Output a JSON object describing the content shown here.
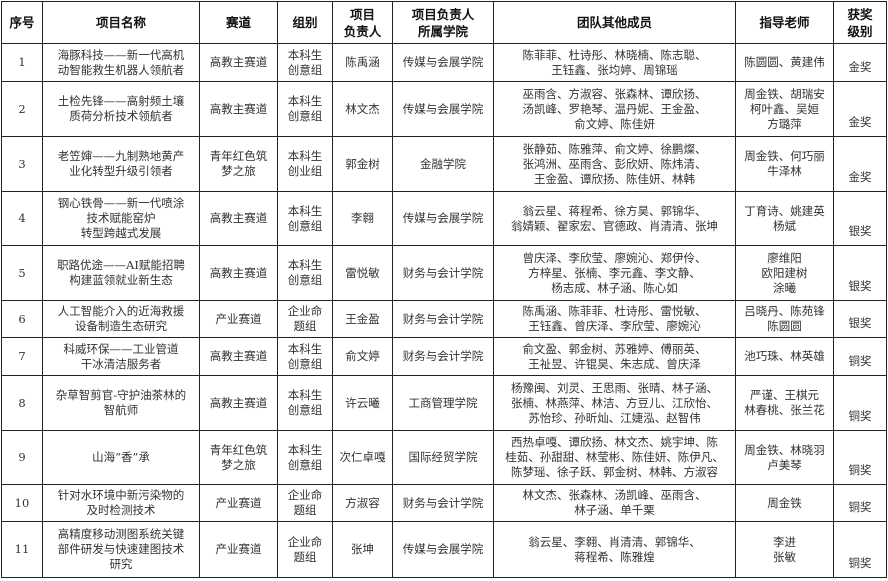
{
  "headers": [
    "序号",
    "项目名称",
    "赛道",
    "组别",
    "项目\n负责人",
    "项目负责人\n所属学院",
    "团队其他成员",
    "指导老师",
    "获奖\n级别"
  ],
  "rows": [
    {
      "no": "1",
      "name": "海豚科技——新一代高机\n动智能救生机器人领航者",
      "track": "高教主赛道",
      "group": "本科生\n创意组",
      "leader": "陈禹涵",
      "college": "传媒与会展学院",
      "members": "陈菲菲、杜诗彤、林晓楠、陈志聪、\n王钰鑫、张均婷、周锦瑶",
      "advisors": "陈圆圆、黄建伟",
      "award": "金奖"
    },
    {
      "no": "2",
      "name": "土检先锋——高射频土壤\n质荷分析技术领航者",
      "track": "高教主赛道",
      "group": "本科生\n创意组",
      "leader": "林文杰",
      "college": "传媒与会展学院",
      "members": "巫雨含、方淑容、张森林、谭欣扬、\n汤凯峰、罗艳琴、温丹妮、王金盈、\n俞文婷、陈佳妍",
      "advisors": "周金铁、胡瑞安\n柯叶鑫、吴姮\n方璐萍",
      "award": "金奖"
    },
    {
      "no": "3",
      "name": "老笠婶——九制熟地黄产\n业化转型升级引领者",
      "track": "青年红色筑\n梦之旅",
      "group": "本科生\n创业组",
      "leader": "郭金树",
      "college": "金融学院",
      "members": "张静茹、陈雅萍、俞文婷、徐鹏燦、\n张鸿洲、巫雨含、彭欣妍、陈炜清、\n王金盈、谭欣扬、陈佳妍、林韩",
      "advisors": "周金铁、何巧丽\n牛泽林",
      "award": "金奖"
    },
    {
      "no": "4",
      "name": "钢心铁骨——新一代喷涂\n技术赋能窑炉\n转型跨越式发展",
      "track": "高教主赛道",
      "group": "本科生\n创意组",
      "leader": "李翱",
      "college": "传媒与会展学院",
      "members": "翁云星、蒋程希、徐方昊、郭锦华、\n翁婧颖、翟家宏、官德政、肖清清、张坤",
      "advisors": "丁育诗、姚建英\n杨斌",
      "award": "银奖"
    },
    {
      "no": "5",
      "name": "职路优途——AI赋能招聘\n构建蓝领就业新生态",
      "track": "高教主赛道",
      "group": "本科生\n创意组",
      "leader": "雷悦敏",
      "college": "财务与会计学院",
      "members": "曾庆泽、李欣莹、廖婉沁、郑伊伶、\n方梓星、张楠、李元鑫、李文静、\n杨志成、林子涵、陈心如",
      "advisors": "廖维阳\n欧阳建树\n涂曦",
      "award": "银奖"
    },
    {
      "no": "6",
      "name": "人工智能介入的近海救援\n设备制造生态研究",
      "track": "产业赛道",
      "group": "企业命\n题组",
      "leader": "王金盈",
      "college": "财务与会计学院",
      "members": "陈禹涵、陈菲菲、杜诗彤、雷悦敏、\n王钰鑫、曾庆泽、李欣莹、廖婉沁",
      "advisors": "吕晓丹、陈苑锋\n陈圆圆",
      "award": "银奖"
    },
    {
      "no": "7",
      "name": "科威环保——工业管道\n干冰清洁服务者",
      "track": "高教主赛道",
      "group": "本科生\n创意组",
      "leader": "俞文婷",
      "college": "财务与会计学院",
      "members": "俞文盈、郭金树、苏雅婷、傅丽英、\n王祉昱、许锟昊、朱志成、曾庆泽",
      "advisors": "池巧珠、林英雄",
      "award": "铜奖"
    },
    {
      "no": "8",
      "name": "杂草智剪官-守护油茶林的\n智航师",
      "track": "高教主赛道",
      "group": "本科生\n创意组",
      "leader": "许云曦",
      "college": "工商管理学院",
      "members": "杨豫闽、刘灵、王思雨、张晴、林子涵、\n张楠、林燕萍、林洁、方豆儿、江欣怡、\n苏怡珍、孙昕灿、江婕泓、赵智伟",
      "advisors": "严谨、王棋元\n林春桃、张兰花",
      "award": "铜奖"
    },
    {
      "no": "9",
      "name": "山海“香”承",
      "track": "青年红色筑\n梦之旅",
      "group": "本科生\n创意组",
      "leader": "次仁卓嘎",
      "college": "国际经贸学院",
      "members": "西热卓嘎、谭欣扬、林文杰、姚宇坤、陈\n桂茹、孙甜甜、林莹彬、陈佳妍、陈伊凡、\n陈梦瑶、徐子跃、郭金树、林韩、方淑容",
      "advisors": "周金铁、林晓羽\n卢美琴",
      "award": "铜奖"
    },
    {
      "no": "10",
      "name": "针对水环境中新污染物的\n及时检测技术",
      "track": "产业赛道",
      "group": "企业命\n题组",
      "leader": "方淑容",
      "college": "财务与会计学院",
      "members": "林文杰、张森林、汤凯峰、巫雨含、\n林子涵、单千栗",
      "advisors": "周金铁",
      "award": "铜奖"
    },
    {
      "no": "11",
      "name": "高精度移动测图系统关键\n部件研发与快速建图技术\n研究",
      "track": "产业赛道",
      "group": "企业命\n题组",
      "leader": "张坤",
      "college": "传媒与会展学院",
      "members": "翁云星、李翱、肖清清、郭锦华、\n蒋程希、陈雅煌",
      "advisors": "李进\n张敏",
      "award": "铜奖"
    }
  ]
}
